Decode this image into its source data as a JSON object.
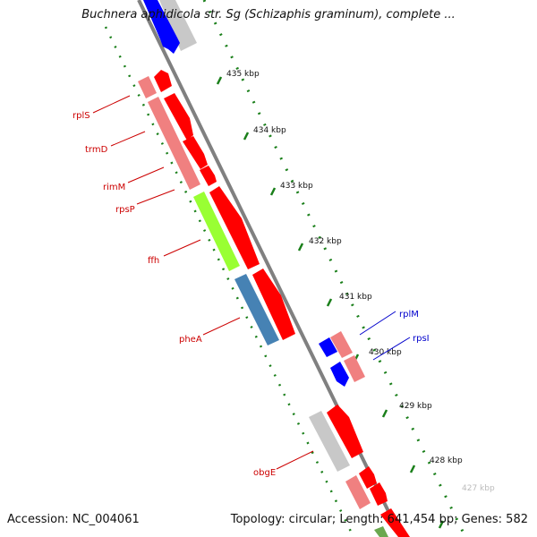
{
  "title": "Buchnera aphidicola str. Sg (Schizaphis graminum), complete ...",
  "footer": {
    "accession": "Accession: NC_004061",
    "summary": "Topology: circular; Length: 641,454 bp; Genes: 582"
  },
  "ticks": [
    {
      "label": "435 kbp"
    },
    {
      "label": "434 kbp"
    },
    {
      "label": "433 kbp"
    },
    {
      "label": "432 kbp"
    },
    {
      "label": "431 kbp"
    },
    {
      "label": "430 kbp"
    },
    {
      "label": "429 kbp"
    },
    {
      "label": "428 kbp"
    },
    {
      "label": "427 kbp"
    }
  ],
  "gene_labels": {
    "rplS": "rplS",
    "trmD": "trmD",
    "rimM": "rimM",
    "rpsP": "rpsP",
    "ffh": "ffh",
    "pheA": "pheA",
    "obgE": "obgE",
    "rplM": "rplM",
    "rpsI": "rpsI"
  },
  "colors": {
    "backbone": "#808080",
    "tick_mark": "#1a7f1a",
    "cds_forward": "#ff0000",
    "cds_reverse_light": "#f08080",
    "ffh_green": "#99ff33",
    "phea_blue": "#4682b4",
    "gray_feature": "#c8c8c8",
    "blue_feature": "#0000ff",
    "label_red": "#cc0000",
    "label_blue": "#0000cc"
  }
}
